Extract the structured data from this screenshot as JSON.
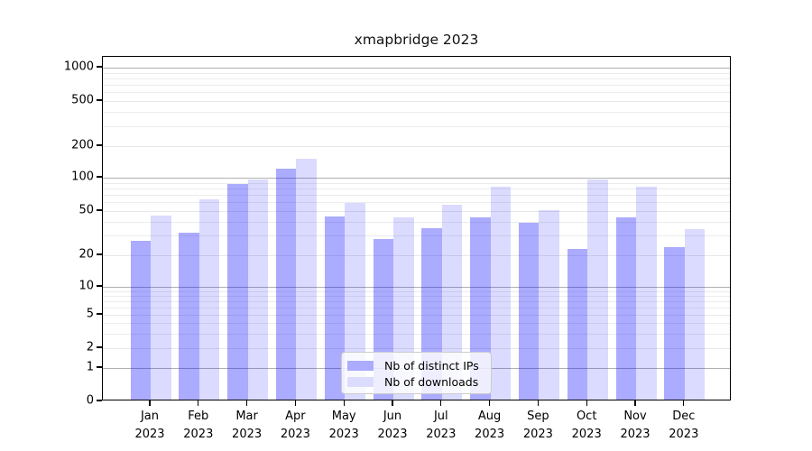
{
  "chart_data": {
    "type": "bar",
    "title": "xmapbridge 2023",
    "y_scale": "symlog",
    "y_ticks": [
      0,
      1,
      2,
      5,
      10,
      20,
      50,
      100,
      200,
      500,
      1000
    ],
    "ylim": [
      0,
      1100
    ],
    "grid": true,
    "legend_position": "bottom-center",
    "x_months": [
      "Jan",
      "Feb",
      "Mar",
      "Apr",
      "May",
      "Jun",
      "Jul",
      "Aug",
      "Sep",
      "Oct",
      "Nov",
      "Dec"
    ],
    "x_year": "2023",
    "series": [
      {
        "name": "Nb of distinct IPs",
        "color": "rgba(0,0,255,0.33)",
        "legend_color": "#ababff",
        "values": [
          26,
          31,
          84,
          118,
          43,
          27,
          34,
          42,
          38,
          22,
          42,
          23
        ]
      },
      {
        "name": "Nb of downloads",
        "color": "rgba(0,0,255,0.14)",
        "legend_color": "#dcdcff",
        "values": [
          44,
          62,
          92,
          147,
          57,
          42,
          55,
          80,
          49,
          93,
          80,
          33
        ]
      }
    ]
  }
}
